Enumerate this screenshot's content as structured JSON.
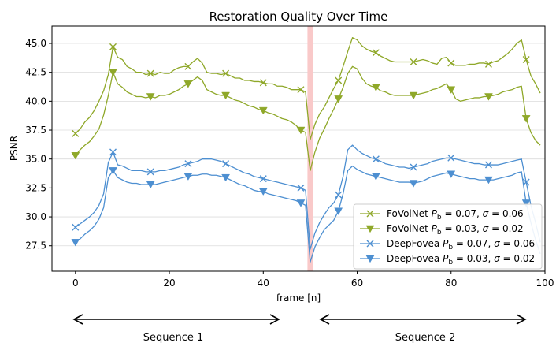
{
  "chart_data": {
    "type": "line",
    "title": "Restoration Quality Over Time",
    "xlabel": "frame [n]",
    "ylabel": "PSNR",
    "xlim": [
      -5,
      100
    ],
    "ylim": [
      25.3,
      46.5
    ],
    "xticks": [
      0,
      20,
      40,
      60,
      80,
      100
    ],
    "yticks": [
      27.5,
      30.0,
      32.5,
      35.0,
      37.5,
      40.0,
      42.5,
      45.0
    ],
    "grid": "horizontal",
    "legend_position": "lower-right",
    "highlight_x": 50,
    "highlight_color": "#f9c9c9",
    "series": [
      {
        "name": "FoVolNet",
        "legend": [
          "FoVolNet ",
          "P",
          "b",
          " = 0.07, ",
          "σ",
          " = 0.06"
        ],
        "color": "#8fa829",
        "marker": "x",
        "x": [
          0,
          1,
          2,
          3,
          4,
          5,
          6,
          7,
          8,
          9,
          10,
          11,
          12,
          13,
          14,
          15,
          16,
          17,
          18,
          19,
          20,
          21,
          22,
          23,
          24,
          25,
          26,
          27,
          28,
          29,
          30,
          31,
          32,
          33,
          34,
          35,
          36,
          37,
          38,
          39,
          40,
          41,
          42,
          43,
          44,
          45,
          46,
          47,
          48,
          49,
          50,
          51,
          52,
          53,
          54,
          55,
          56,
          57,
          58,
          59,
          60,
          61,
          62,
          63,
          64,
          65,
          66,
          67,
          68,
          69,
          70,
          71,
          72,
          73,
          74,
          75,
          76,
          77,
          78,
          79,
          80,
          81,
          82,
          83,
          84,
          85,
          86,
          87,
          88,
          89,
          90,
          91,
          92,
          93,
          94,
          95,
          96,
          97,
          98,
          99
        ],
        "values": [
          37.2,
          37.6,
          38.2,
          38.6,
          39.2,
          40.0,
          40.9,
          42.3,
          44.7,
          43.8,
          43.6,
          43.0,
          42.8,
          42.5,
          42.5,
          42.3,
          42.4,
          42.3,
          42.5,
          42.4,
          42.4,
          42.7,
          42.9,
          43.0,
          43.0,
          43.4,
          43.7,
          43.3,
          42.5,
          42.4,
          42.4,
          42.3,
          42.4,
          42.2,
          42.0,
          42.0,
          41.8,
          41.8,
          41.7,
          41.7,
          41.6,
          41.5,
          41.5,
          41.3,
          41.3,
          41.2,
          41.0,
          41.0,
          41.0,
          40.8,
          36.7,
          38.0,
          38.9,
          39.5,
          40.3,
          41.1,
          41.8,
          43.0,
          44.3,
          45.5,
          45.3,
          44.8,
          44.5,
          44.3,
          44.2,
          43.9,
          43.7,
          43.5,
          43.4,
          43.4,
          43.4,
          43.4,
          43.4,
          43.5,
          43.6,
          43.5,
          43.3,
          43.2,
          43.7,
          43.8,
          43.3,
          43.1,
          43.1,
          43.1,
          43.2,
          43.2,
          43.3,
          43.3,
          43.2,
          43.4,
          43.5,
          43.8,
          44.1,
          44.5,
          45.0,
          45.3,
          43.6,
          42.2,
          41.5,
          40.7
        ]
      },
      {
        "name": "FoVolNet",
        "legend": [
          "FoVolNet ",
          "P",
          "b",
          " = 0.03, ",
          "σ",
          " = 0.02"
        ],
        "color": "#8fa829",
        "marker": "v",
        "x": [
          0,
          1,
          2,
          3,
          4,
          5,
          6,
          7,
          8,
          9,
          10,
          11,
          12,
          13,
          14,
          15,
          16,
          17,
          18,
          19,
          20,
          21,
          22,
          23,
          24,
          25,
          26,
          27,
          28,
          29,
          30,
          31,
          32,
          33,
          34,
          35,
          36,
          37,
          38,
          39,
          40,
          41,
          42,
          43,
          44,
          45,
          46,
          47,
          48,
          49,
          50,
          51,
          52,
          53,
          54,
          55,
          56,
          57,
          58,
          59,
          60,
          61,
          62,
          63,
          64,
          65,
          66,
          67,
          68,
          69,
          70,
          71,
          72,
          73,
          74,
          75,
          76,
          77,
          78,
          79,
          80,
          81,
          82,
          83,
          84,
          85,
          86,
          87,
          88,
          89,
          90,
          91,
          92,
          93,
          94,
          95,
          96,
          97,
          98,
          99
        ],
        "values": [
          35.3,
          35.8,
          36.2,
          36.5,
          37.0,
          37.6,
          38.8,
          40.5,
          42.5,
          41.5,
          41.2,
          40.8,
          40.6,
          40.4,
          40.4,
          40.3,
          40.4,
          40.3,
          40.5,
          40.5,
          40.6,
          40.8,
          41.0,
          41.3,
          41.5,
          41.8,
          42.1,
          41.8,
          41.0,
          40.8,
          40.6,
          40.5,
          40.5,
          40.3,
          40.1,
          40.0,
          39.8,
          39.6,
          39.5,
          39.3,
          39.2,
          39.0,
          38.9,
          38.7,
          38.5,
          38.4,
          38.2,
          37.9,
          37.5,
          37.3,
          34.0,
          35.6,
          36.8,
          37.6,
          38.5,
          39.3,
          40.2,
          41.2,
          42.4,
          43.0,
          42.8,
          42.0,
          41.5,
          41.3,
          41.2,
          40.9,
          40.8,
          40.6,
          40.5,
          40.5,
          40.5,
          40.5,
          40.5,
          40.6,
          40.7,
          40.8,
          41.0,
          41.1,
          41.3,
          41.5,
          41.0,
          40.2,
          40.0,
          40.1,
          40.2,
          40.3,
          40.3,
          40.4,
          40.4,
          40.5,
          40.6,
          40.8,
          40.9,
          41.0,
          41.2,
          41.3,
          38.5,
          37.3,
          36.6,
          36.2
        ]
      },
      {
        "name": "DeepFovea",
        "legend": [
          "DeepFovea ",
          "P",
          "b",
          " = 0.07, ",
          "σ",
          " = 0.06"
        ],
        "color": "#4d8fd1",
        "marker": "x",
        "x": [
          0,
          1,
          2,
          3,
          4,
          5,
          6,
          7,
          8,
          9,
          10,
          11,
          12,
          13,
          14,
          15,
          16,
          17,
          18,
          19,
          20,
          21,
          22,
          23,
          24,
          25,
          26,
          27,
          28,
          29,
          30,
          31,
          32,
          33,
          34,
          35,
          36,
          37,
          38,
          39,
          40,
          41,
          42,
          43,
          44,
          45,
          46,
          47,
          48,
          49,
          50,
          51,
          52,
          53,
          54,
          55,
          56,
          57,
          58,
          59,
          60,
          61,
          62,
          63,
          64,
          65,
          66,
          67,
          68,
          69,
          70,
          71,
          72,
          73,
          74,
          75,
          76,
          77,
          78,
          79,
          80,
          81,
          82,
          83,
          84,
          85,
          86,
          87,
          88,
          89,
          90,
          91,
          92,
          93,
          94,
          95,
          96,
          97,
          98,
          99
        ],
        "values": [
          29.1,
          29.4,
          29.7,
          30.0,
          30.4,
          31.0,
          32.0,
          34.7,
          35.6,
          34.5,
          34.4,
          34.2,
          34.0,
          34.0,
          34.0,
          33.9,
          33.9,
          33.9,
          34.0,
          34.0,
          34.1,
          34.2,
          34.3,
          34.5,
          34.6,
          34.7,
          34.8,
          35.0,
          35.0,
          35.0,
          34.9,
          34.8,
          34.6,
          34.4,
          34.2,
          34.0,
          33.8,
          33.7,
          33.5,
          33.4,
          33.3,
          33.2,
          33.1,
          33.0,
          32.9,
          32.8,
          32.7,
          32.6,
          32.5,
          32.3,
          27.2,
          28.6,
          29.5,
          30.2,
          30.8,
          31.2,
          31.9,
          33.5,
          35.8,
          36.2,
          35.8,
          35.5,
          35.3,
          35.1,
          35.0,
          34.8,
          34.6,
          34.5,
          34.4,
          34.3,
          34.3,
          34.2,
          34.3,
          34.4,
          34.5,
          34.6,
          34.8,
          34.9,
          35.0,
          35.1,
          35.1,
          35.0,
          34.9,
          34.8,
          34.7,
          34.6,
          34.6,
          34.5,
          34.5,
          34.5,
          34.5,
          34.6,
          34.7,
          34.8,
          34.9,
          35.0,
          33.0,
          31.0,
          29.5,
          27.8
        ]
      },
      {
        "name": "DeepFovea",
        "legend": [
          "DeepFovea ",
          "P",
          "b",
          " = 0.03, ",
          "σ",
          " = 0.02"
        ],
        "color": "#4d8fd1",
        "marker": "v",
        "x": [
          0,
          1,
          2,
          3,
          4,
          5,
          6,
          7,
          8,
          9,
          10,
          11,
          12,
          13,
          14,
          15,
          16,
          17,
          18,
          19,
          20,
          21,
          22,
          23,
          24,
          25,
          26,
          27,
          28,
          29,
          30,
          31,
          32,
          33,
          34,
          35,
          36,
          37,
          38,
          39,
          40,
          41,
          42,
          43,
          44,
          45,
          46,
          47,
          48,
          49,
          50,
          51,
          52,
          53,
          54,
          55,
          56,
          57,
          58,
          59,
          60,
          61,
          62,
          63,
          64,
          65,
          66,
          67,
          68,
          69,
          70,
          71,
          72,
          73,
          74,
          75,
          76,
          77,
          78,
          79,
          80,
          81,
          82,
          83,
          84,
          85,
          86,
          87,
          88,
          89,
          90,
          91,
          92,
          93,
          94,
          95,
          96,
          97,
          98,
          99
        ],
        "values": [
          27.8,
          28.1,
          28.5,
          28.8,
          29.2,
          29.8,
          30.8,
          33.4,
          34.0,
          33.4,
          33.2,
          33.0,
          32.9,
          32.9,
          32.8,
          32.8,
          32.8,
          32.8,
          32.9,
          33.0,
          33.1,
          33.2,
          33.3,
          33.4,
          33.5,
          33.6,
          33.6,
          33.7,
          33.7,
          33.6,
          33.6,
          33.5,
          33.4,
          33.2,
          33.0,
          32.8,
          32.7,
          32.5,
          32.3,
          32.2,
          32.2,
          32.0,
          31.9,
          31.8,
          31.7,
          31.6,
          31.5,
          31.4,
          31.2,
          31.0,
          26.1,
          27.4,
          28.2,
          28.9,
          29.3,
          29.7,
          30.5,
          32.0,
          34.0,
          34.4,
          34.1,
          33.9,
          33.7,
          33.6,
          33.5,
          33.4,
          33.3,
          33.2,
          33.1,
          33.0,
          33.0,
          33.0,
          32.9,
          33.0,
          33.1,
          33.3,
          33.5,
          33.6,
          33.7,
          33.8,
          33.7,
          33.6,
          33.5,
          33.4,
          33.3,
          33.3,
          33.2,
          33.2,
          33.2,
          33.2,
          33.3,
          33.4,
          33.5,
          33.6,
          33.8,
          33.9,
          31.2,
          29.5,
          28.0,
          26.8
        ]
      }
    ]
  },
  "sequences": [
    {
      "label": "Sequence 1"
    },
    {
      "label": "Sequence 2"
    }
  ]
}
